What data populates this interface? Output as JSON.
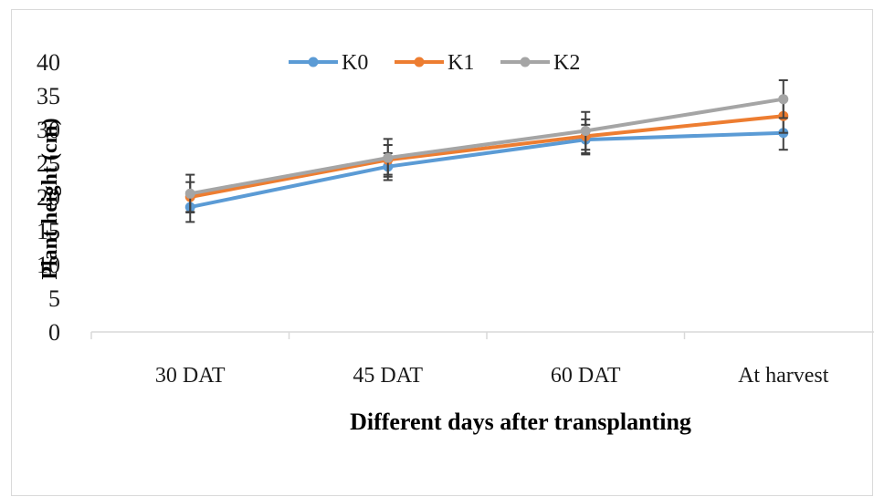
{
  "chart_data": {
    "type": "line",
    "title": "",
    "xlabel": "Different days after transplanting",
    "ylabel": "Plant height (cm)",
    "categories": [
      "30 DAT",
      "45 DAT",
      "60 DAT",
      "At harvest"
    ],
    "ylim": [
      0,
      40
    ],
    "yticks": [
      "0",
      "5",
      "10",
      "15",
      "20",
      "25",
      "30",
      "35",
      "40"
    ],
    "grid": false,
    "legend_position": "top",
    "series": [
      {
        "name": "K0",
        "color": "#5b9bd5",
        "values": [
          18.5,
          24.5,
          28.5,
          29.5
        ],
        "errors": [
          2.2,
          2.0,
          2.2,
          2.5
        ]
      },
      {
        "name": "K1",
        "color": "#ed7d31",
        "values": [
          20.0,
          25.5,
          29.0,
          32.0
        ],
        "errors": [
          2.2,
          2.2,
          2.5,
          2.5
        ]
      },
      {
        "name": "K2",
        "color": "#a5a5a5",
        "values": [
          20.5,
          25.8,
          29.8,
          34.5
        ],
        "errors": [
          2.8,
          2.8,
          2.8,
          2.8
        ]
      }
    ]
  }
}
